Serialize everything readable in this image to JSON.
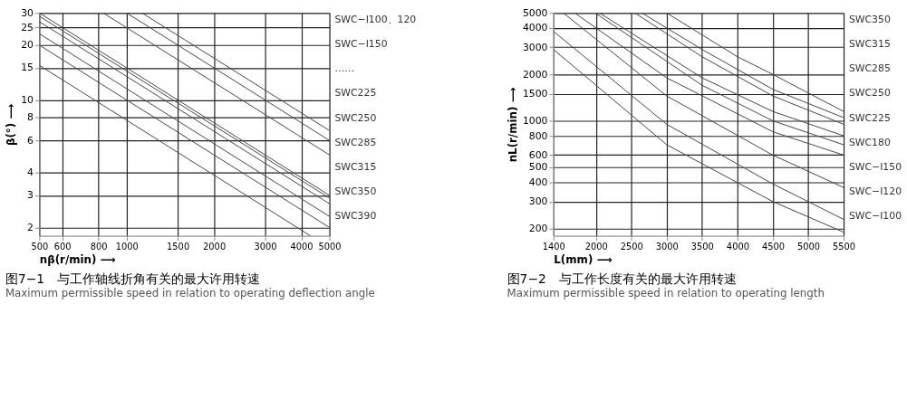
{
  "chart_data": [
    {
      "type": "line",
      "title": "图7−1　与工作轴线折角有关的最大许用转速",
      "subtitle": "Maximum permissible speed in relation to operating deflection angle",
      "xlabel": "nβ(r/min) ⟶",
      "ylabel": "β(°) ⟶",
      "log": "xy",
      "grid": true,
      "xlim": [
        500,
        5000
      ],
      "ylim": [
        1.8,
        30
      ],
      "xticks": [
        500,
        600,
        800,
        1000,
        1500,
        2000,
        3000,
        4000,
        5000
      ],
      "yticks": [
        2,
        3,
        4,
        6,
        8,
        10,
        15,
        20,
        25,
        30
      ],
      "series": [
        {
          "color": "#444444",
          "x": [
            500,
            5000
          ],
          "values": [
            30,
            3
          ]
        },
        {
          "color": "#444444",
          "x": [
            500,
            5000
          ],
          "values": [
            28.8,
            2.9
          ]
        },
        {
          "color": "#444444",
          "x": [
            500,
            5000
          ],
          "values": [
            26.9,
            2.7
          ]
        },
        {
          "color": "#444444",
          "x": [
            500,
            5000
          ],
          "values": [
            23.1,
            2.3
          ]
        },
        {
          "color": "#444444",
          "x": [
            500,
            5000
          ],
          "values": [
            20,
            2.0
          ]
        },
        {
          "color": "#444444",
          "x": [
            500,
            4300
          ],
          "values": [
            15.5,
            1.8
          ]
        },
        {
          "color": "#444444",
          "x": [
            830,
            5000
          ],
          "values": [
            30,
            5.0
          ]
        },
        {
          "color": "#444444",
          "x": [
            1000,
            5000
          ],
          "values": [
            30,
            6.0
          ]
        },
        {
          "color": "#444444",
          "x": [
            1130,
            5000
          ],
          "values": [
            30,
            6.8
          ]
        }
      ],
      "annotations": [
        "SWC−I100、120",
        "SWC−I150",
        "……",
        "SWC225",
        "SWC250",
        "SWC285",
        "SWC315",
        "SWC350",
        "SWC390"
      ]
    },
    {
      "type": "line",
      "title": "图7−2　与工作长度有关的最大许用转速",
      "subtitle": "Maximum permissible speed in relation to operating length",
      "xlabel": "L(mm) ⟶",
      "ylabel": "nL(r/min) ⟶",
      "log": "y",
      "grid": true,
      "xlim": [
        1400,
        5500
      ],
      "ylim": [
        180,
        5000
      ],
      "xticks": [
        1400,
        2000,
        2500,
        3000,
        3500,
        4000,
        4500,
        5000,
        5500
      ],
      "yticks": [
        200,
        300,
        400,
        500,
        600,
        800,
        1000,
        1500,
        2000,
        3000,
        4000,
        5000
      ],
      "series": [
        {
          "color": "#444444",
          "x": [
            1400,
            3000,
            4500,
            5500
          ],
          "values": [
            2900,
            700,
            300,
            190
          ]
        },
        {
          "color": "#444444",
          "x": [
            1400,
            3000,
            4500,
            5500
          ],
          "values": [
            3800,
            950,
            390,
            230
          ]
        },
        {
          "color": "#444444",
          "x": [
            1540,
            3000,
            4500,
            5500
          ],
          "values": [
            5000,
            1450,
            600,
            370
          ]
        },
        {
          "color": "#444444",
          "x": [
            1700,
            3000,
            4500,
            5500
          ],
          "values": [
            5000,
            1900,
            850,
            600
          ]
        },
        {
          "color": "#444444",
          "x": [
            1990,
            3500,
            4500,
            5500
          ],
          "values": [
            5000,
            1700,
            1000,
            700
          ]
        },
        {
          "color": "#444444",
          "x": [
            2050,
            3500,
            4500,
            5500
          ],
          "values": [
            5000,
            1900,
            1150,
            800
          ]
        },
        {
          "color": "#444444",
          "x": [
            2550,
            3500,
            4500,
            5500
          ],
          "values": [
            5000,
            2600,
            1450,
            950
          ]
        },
        {
          "color": "#444444",
          "x": [
            2650,
            3500,
            4500,
            5500
          ],
          "values": [
            5000,
            2900,
            1600,
            1050
          ]
        },
        {
          "color": "#444444",
          "x": [
            3000,
            4000,
            4500,
            5500
          ],
          "values": [
            5000,
            2600,
            2000,
            1150
          ]
        }
      ],
      "annotations": [
        "SWC350",
        "SWC315",
        "SWC285",
        "SWC250",
        "SWC225",
        "SWC180",
        "SWC−I150",
        "SWC−I120",
        "SWC−I100"
      ]
    }
  ]
}
